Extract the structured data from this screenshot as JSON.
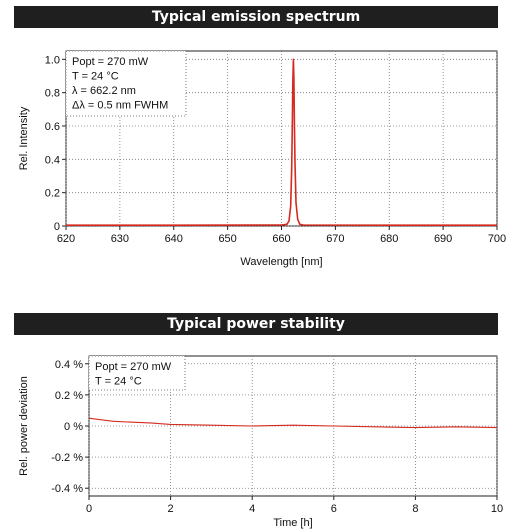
{
  "colors": {
    "series": "#d42a1f",
    "grid": "#777777",
    "banner_bg": "#1f1f1f",
    "banner_text": "#ffffff"
  },
  "chart_data": [
    {
      "type": "line",
      "title": "Typical emission spectrum",
      "xlabel": "Wavelength [nm]",
      "ylabel": "Rel. Intensity",
      "xlim": [
        620,
        700
      ],
      "ylim": [
        0,
        1.05
      ],
      "x_ticks": [
        620,
        630,
        640,
        650,
        660,
        670,
        680,
        690,
        700
      ],
      "x_tick_labels": [
        "620",
        "630",
        "640",
        "650",
        "660",
        "670",
        "680",
        "690",
        "700"
      ],
      "y_ticks": [
        0,
        0.2,
        0.4,
        0.6,
        0.8,
        1.0
      ],
      "y_tick_labels": [
        "0",
        "0.2",
        "0.4",
        "0.6",
        "0.8",
        "1.0"
      ],
      "grid": "dotted",
      "annotations": [
        "Popt = 270 mW",
        "T = 24 °C",
        "λ = 662.2 nm",
        "Δλ = 0.5 nm FWHM"
      ],
      "series": [
        {
          "color": "#d42a1f",
          "x": [
            620,
            640,
            660,
            661,
            661.4,
            661.7,
            661.9,
            662.0,
            662.1,
            662.2,
            662.3,
            662.4,
            662.5,
            662.7,
            663.0,
            663.4,
            664,
            680,
            700
          ],
          "y": [
            0.005,
            0.005,
            0.006,
            0.01,
            0.03,
            0.12,
            0.35,
            0.6,
            0.86,
            1.0,
            0.88,
            0.62,
            0.38,
            0.14,
            0.04,
            0.01,
            0.006,
            0.005,
            0.005
          ]
        }
      ]
    },
    {
      "type": "line",
      "title": "Typical power stability",
      "xlabel": "Time [h]",
      "ylabel": "Rel. power deviation",
      "xlim": [
        0,
        10
      ],
      "ylim": [
        -0.45,
        0.45
      ],
      "x_ticks": [
        0,
        2,
        4,
        6,
        8,
        10
      ],
      "x_tick_labels": [
        "0",
        "2",
        "4",
        "6",
        "8",
        "10"
      ],
      "y_ticks": [
        -0.4,
        -0.2,
        0,
        0.2,
        0.4
      ],
      "y_tick_labels": [
        "-0.4 %",
        "-0.2 %",
        "0 %",
        "0.2 %",
        "0.4 %"
      ],
      "grid": "dotted",
      "annotations": [
        "Popt = 270 mW",
        "T = 24 °C"
      ],
      "series": [
        {
          "color": "#d42a1f",
          "x": [
            0,
            0.3,
            0.6,
            1.0,
            1.5,
            2.0,
            3.0,
            4.0,
            5.0,
            6.0,
            7.0,
            8.0,
            9.0,
            10.0
          ],
          "y": [
            0.05,
            0.04,
            0.03,
            0.025,
            0.02,
            0.01,
            0.005,
            0.0,
            0.005,
            0.0,
            -0.005,
            -0.01,
            -0.005,
            -0.01
          ]
        }
      ]
    }
  ]
}
